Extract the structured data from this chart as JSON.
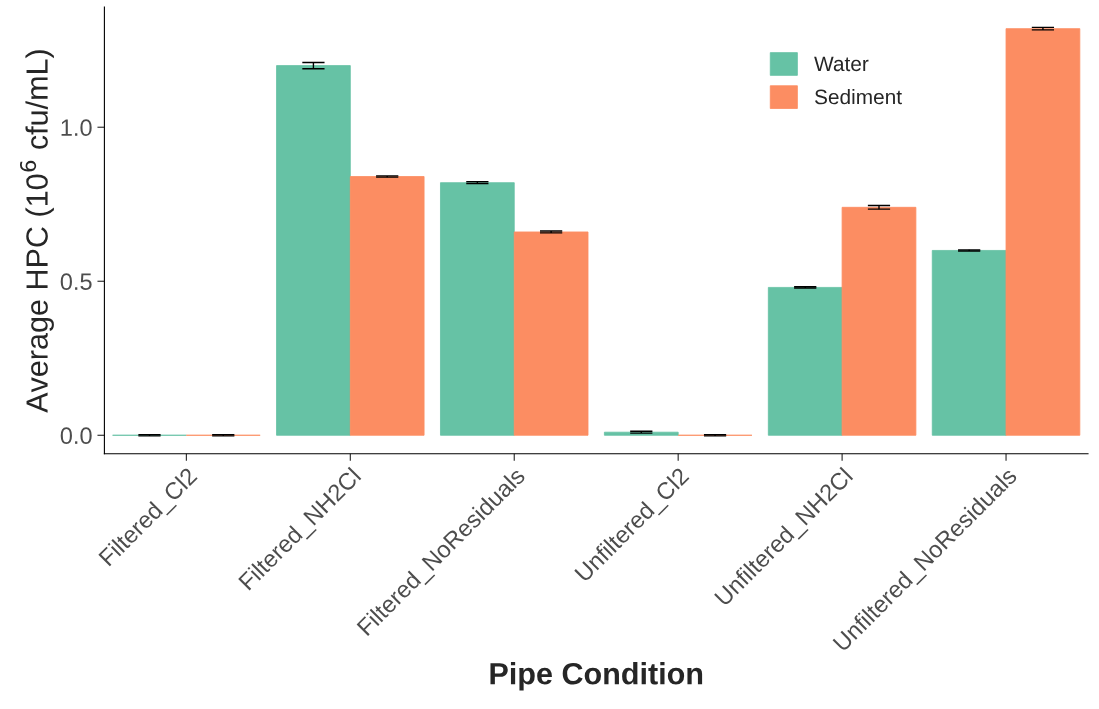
{
  "chart_data": {
    "type": "bar",
    "xlabel": "Pipe Condition",
    "ylabel": "Average HPC (10$^{6}$ cfu/mL)",
    "categories": [
      "Filtered_Cl2",
      "Filtered_NH2Cl",
      "Filtered_NoResiduals",
      "Unfiltered_Cl2",
      "Unfiltered_NH2Cl",
      "Unfiltered_NoResiduals"
    ],
    "series": [
      {
        "name": "Water",
        "color": "#66c2a5",
        "values": [
          0.0,
          1.2,
          0.82,
          0.01,
          0.48,
          0.6
        ],
        "errors": [
          0.002,
          0.01,
          0.003,
          0.003,
          0.002,
          0.002
        ]
      },
      {
        "name": "Sediment",
        "color": "#fc8d62",
        "values": [
          0.0,
          0.84,
          0.66,
          0.0,
          0.74,
          1.32
        ],
        "errors": [
          0.002,
          0.002,
          0.003,
          0.002,
          0.006,
          0.004
        ]
      }
    ],
    "ylim": [
      -0.06,
      1.39
    ],
    "yticks": [
      {
        "value": 0,
        "label": "0.0"
      },
      0.5,
      {
        "value": 1,
        "label": "1.0"
      }
    ],
    "grid": false,
    "legend": "top right"
  }
}
